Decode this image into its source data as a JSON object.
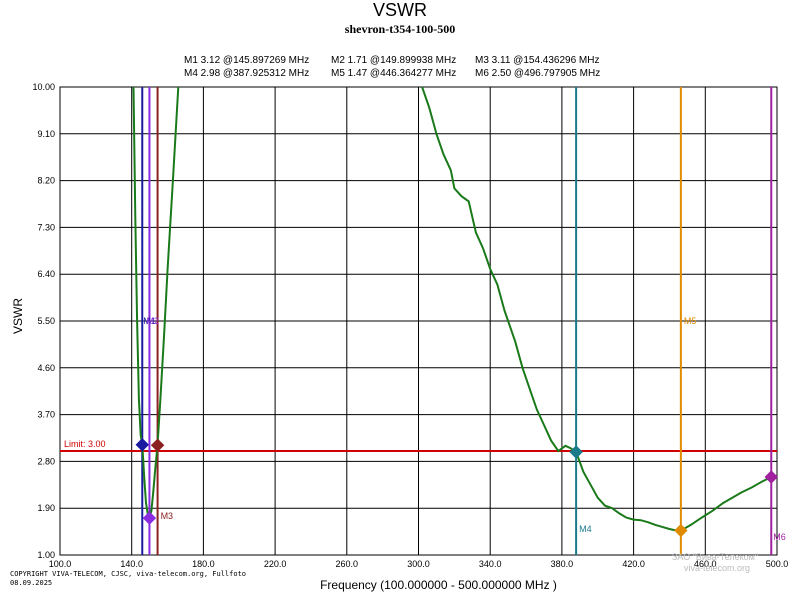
{
  "chart_data": {
    "type": "line",
    "title": "VSWR",
    "subtitle": "shevron-t354-100-500",
    "xlabel": "Frequency (100.000000 - 500.000000 MHz )",
    "ylabel": "VSWR",
    "xlim": [
      100,
      500
    ],
    "ylim": [
      1.0,
      10.0
    ],
    "x_ticks": [
      "100.0",
      "140.0",
      "180.0",
      "220.0",
      "260.0",
      "300.0",
      "340.0",
      "380.0",
      "420.0",
      "460.0",
      "500.0"
    ],
    "y_ticks": [
      "1.00",
      "1.90",
      "2.80",
      "3.70",
      "4.60",
      "5.50",
      "6.40",
      "7.30",
      "8.20",
      "9.10",
      "10.00"
    ],
    "grid": true,
    "limit": {
      "label": "Limit: 3.00",
      "value": 3.0,
      "color": "#d00000"
    },
    "series": [
      {
        "name": "VSWR",
        "color": "#1a7a1a",
        "segments": [
          [
            [
              141.0,
              10.0
            ],
            [
              142.0,
              7.5
            ],
            [
              143.0,
              5.5
            ],
            [
              144.0,
              4.0
            ],
            [
              145.0,
              3.3
            ],
            [
              145.9,
              3.12
            ],
            [
              147.0,
              2.5
            ],
            [
              148.0,
              2.0
            ],
            [
              149.0,
              1.78
            ],
            [
              149.9,
              1.71
            ],
            [
              151.0,
              1.85
            ],
            [
              152.0,
              2.2
            ],
            [
              153.0,
              2.6
            ],
            [
              154.4,
              3.11
            ],
            [
              156.0,
              4.0
            ],
            [
              158.0,
              5.2
            ],
            [
              160.0,
              6.5
            ],
            [
              163.0,
              8.2
            ],
            [
              166.0,
              10.0
            ]
          ],
          [
            [
              302.0,
              10.0
            ],
            [
              306.0,
              9.6
            ],
            [
              310.0,
              9.1
            ],
            [
              314.0,
              8.7
            ],
            [
              318.0,
              8.4
            ],
            [
              320.0,
              8.05
            ],
            [
              324.0,
              7.9
            ],
            [
              328.0,
              7.8
            ],
            [
              332.0,
              7.2
            ],
            [
              336.0,
              6.9
            ],
            [
              340.0,
              6.5
            ],
            [
              344.0,
              6.2
            ],
            [
              348.0,
              5.7
            ],
            [
              350.0,
              5.5
            ],
            [
              354.0,
              5.1
            ],
            [
              358.0,
              4.6
            ],
            [
              362.0,
              4.2
            ],
            [
              366.0,
              3.8
            ],
            [
              370.0,
              3.5
            ],
            [
              374.0,
              3.2
            ],
            [
              378.0,
              3.0
            ],
            [
              382.0,
              3.1
            ],
            [
              385.0,
              3.05
            ],
            [
              387.9,
              2.98
            ],
            [
              392.0,
              2.6
            ],
            [
              396.0,
              2.35
            ],
            [
              400.0,
              2.1
            ],
            [
              404.0,
              1.95
            ],
            [
              408.0,
              1.9
            ],
            [
              412.0,
              1.8
            ],
            [
              416.0,
              1.72
            ],
            [
              420.0,
              1.68
            ],
            [
              424.0,
              1.67
            ],
            [
              428.0,
              1.63
            ],
            [
              432.0,
              1.58
            ],
            [
              436.0,
              1.54
            ],
            [
              440.0,
              1.5
            ],
            [
              444.0,
              1.47
            ],
            [
              446.4,
              1.47
            ],
            [
              452.0,
              1.58
            ],
            [
              458.0,
              1.72
            ],
            [
              464.0,
              1.85
            ],
            [
              470.0,
              2.0
            ],
            [
              476.0,
              2.12
            ],
            [
              480.0,
              2.2
            ],
            [
              486.0,
              2.3
            ],
            [
              492.0,
              2.42
            ],
            [
              496.8,
              2.5
            ]
          ]
        ]
      }
    ],
    "markers": [
      {
        "id": "M1",
        "value": 3.12,
        "freq": 145.897269,
        "text": "M1  3.12 @145.897269 MHz",
        "label": "M1",
        "color": "#1a1aa0"
      },
      {
        "id": "M2",
        "value": 1.71,
        "freq": 149.899938,
        "text": "M2  1.71 @149.899938 MHz",
        "label": "M2",
        "color": "#8a2be2"
      },
      {
        "id": "M3",
        "value": 3.11,
        "freq": 154.436296,
        "text": "M3  3.11 @154.436296 MHz",
        "label": "M3",
        "color": "#8b2020"
      },
      {
        "id": "M4",
        "value": 2.98,
        "freq": 387.925312,
        "text": "M4  2.98 @387.925312 MHz",
        "label": "M4",
        "color": "#1a7a8a"
      },
      {
        "id": "M5",
        "value": 1.47,
        "freq": 446.364277,
        "text": "M5  1.47 @446.364277 MHz",
        "label": "M5",
        "color": "#e08a00"
      },
      {
        "id": "M6",
        "value": 2.5,
        "freq": 496.797905,
        "text": "M6  2.50 @496.797905 MHz",
        "label": "M6",
        "color": "#a020a0"
      }
    ]
  },
  "copyright": [
    "COPYRIGHT VIVA-TELECOM, CJSC, viva-telecom.org, Fullfoto",
    "08.09.2025"
  ],
  "watermark": [
    "ЗАО \"Вива-Телеком\"",
    "viva-telecom.org"
  ]
}
